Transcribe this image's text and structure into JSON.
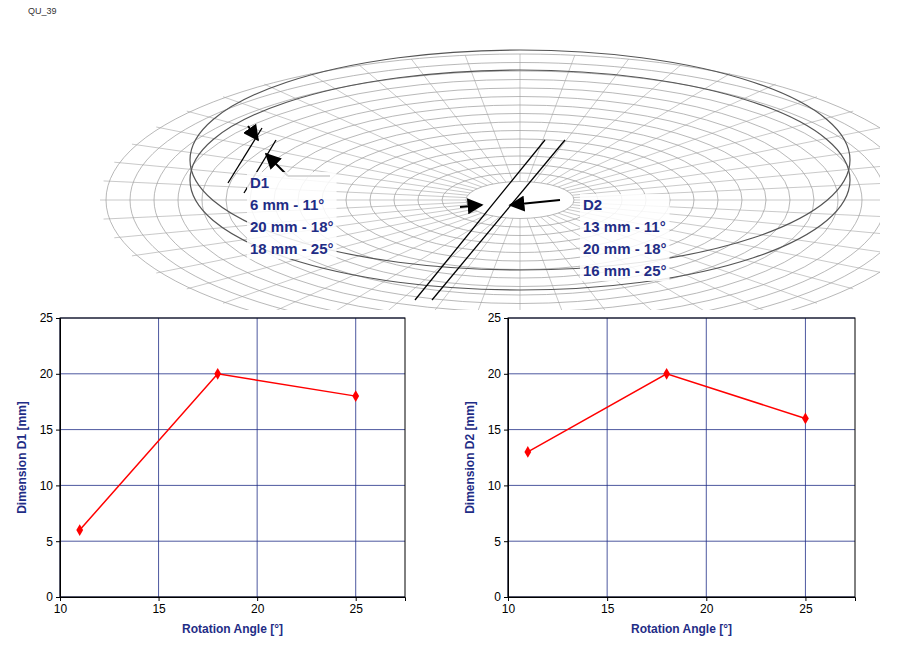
{
  "diagram": {
    "label_id": "QU_39",
    "annotations": [
      {
        "label": "D1",
        "lines": [
          "6 mm - 11°",
          "20 mm - 18°",
          "18 mm - 25°"
        ]
      },
      {
        "label": "D2",
        "lines": [
          "13 mm - 11°",
          "20 mm - 18°",
          "16 mm - 25°"
        ]
      }
    ]
  },
  "chart_data": [
    {
      "type": "line",
      "x_label": "Rotation Angle [°]",
      "y_label": "Dimension D1 [mm]",
      "x": [
        11,
        18,
        25
      ],
      "values": [
        6,
        20,
        18
      ],
      "color": "#ff0000",
      "marker": "diamond",
      "xlim": [
        10,
        27.5
      ],
      "xticks": [
        10,
        15,
        20,
        25
      ],
      "ylim": [
        0,
        25
      ],
      "yticks": [
        0,
        5,
        10,
        15,
        20,
        25
      ],
      "grid": true
    },
    {
      "type": "line",
      "x_label": "Rotation Angle [°]",
      "y_label": "Dimension D2 [mm]",
      "x": [
        11,
        18,
        25
      ],
      "values": [
        13,
        20,
        16
      ],
      "color": "#ff0000",
      "marker": "diamond",
      "xlim": [
        10,
        27.5
      ],
      "xticks": [
        10,
        15,
        20,
        25
      ],
      "ylim": [
        0,
        25
      ],
      "yticks": [
        0,
        5,
        10,
        15,
        20,
        25
      ],
      "grid": true
    }
  ]
}
